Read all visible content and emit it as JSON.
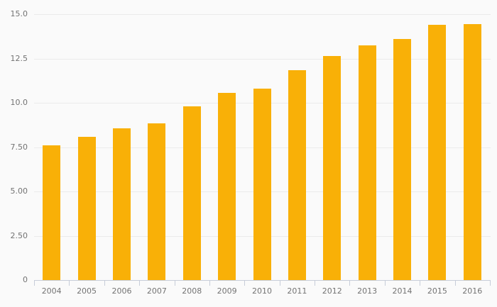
{
  "chart_data": {
    "type": "bar",
    "title": "",
    "xlabel": "",
    "ylabel": "",
    "categories": [
      "2004",
      "2005",
      "2006",
      "2007",
      "2008",
      "2009",
      "2010",
      "2011",
      "2012",
      "2013",
      "2014",
      "2015",
      "2016"
    ],
    "values": [
      7.6,
      8.1,
      8.55,
      8.85,
      9.8,
      10.55,
      10.8,
      11.85,
      12.65,
      13.25,
      13.6,
      14.4,
      14.45
    ],
    "ylim": [
      0,
      15
    ],
    "yticks": [
      {
        "value": 0,
        "label": "0"
      },
      {
        "value": 2.5,
        "label": "2.50"
      },
      {
        "value": 5,
        "label": "5.00"
      },
      {
        "value": 7.5,
        "label": "7.50"
      },
      {
        "value": 10,
        "label": "10.0"
      },
      {
        "value": 12.5,
        "label": "12.5"
      },
      {
        "value": 15,
        "label": "15.0"
      }
    ],
    "grid": true,
    "legend": false
  },
  "colors": {
    "background": "#fafafa",
    "bar": "#f9b007",
    "gridline": "#ebebeb",
    "axis_line": "#c7cdd9",
    "tick_label": "#737373"
  }
}
